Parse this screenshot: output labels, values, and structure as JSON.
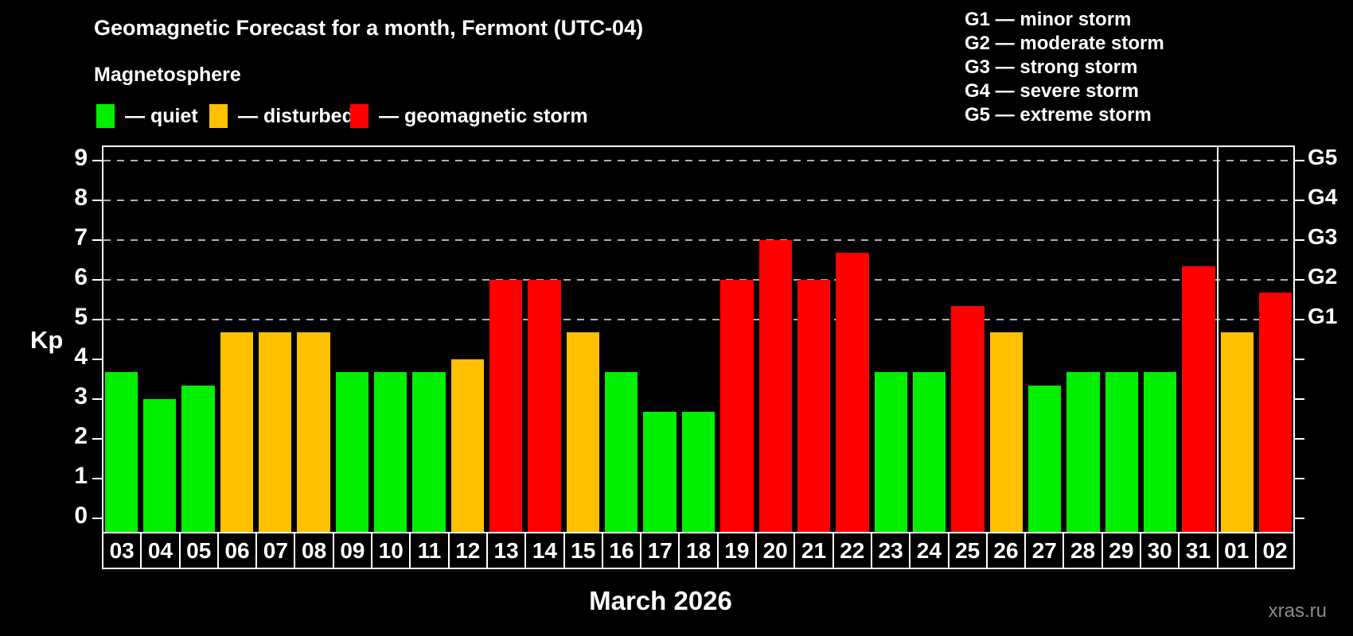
{
  "title": "Geomagnetic Forecast for a month, Fermont (UTC-04)",
  "subtitle": "Magnetosphere",
  "legend": {
    "quiet": "— quiet",
    "disturbed": "— disturbed",
    "storm": "— geomagnetic storm"
  },
  "g_legend": [
    "G1 — minor storm",
    "G2 — moderate storm",
    "G3 — strong storm",
    "G4 — severe storm",
    "G5 — extreme storm"
  ],
  "colors": {
    "quiet": "#00f000",
    "disturbed": "#ffc000",
    "storm": "#ff0000",
    "grid": "#b0b0b0",
    "axis": "#ffffff"
  },
  "watermark": "xras.ru",
  "chart_data": {
    "type": "bar",
    "title": "Geomagnetic Forecast for a month, Fermont (UTC-04)",
    "subtitle": "Magnetosphere",
    "xlabel": "March 2026",
    "ylabel": "Kp",
    "ylim": [
      -0.35,
      9.4
    ],
    "yticks": [
      "0",
      "1",
      "2",
      "3",
      "4",
      "5",
      "6",
      "7",
      "8",
      "9"
    ],
    "gridlines_at": [
      5,
      6,
      7,
      8,
      9
    ],
    "grid": "dashed, horizontal, at storm levels only",
    "legend_position": "top",
    "right_axis_ticks": [
      {
        "kp": 5,
        "label": "G1"
      },
      {
        "kp": 6,
        "label": "G2"
      },
      {
        "kp": 7,
        "label": "G3"
      },
      {
        "kp": 8,
        "label": "G4"
      },
      {
        "kp": 9,
        "label": "G5"
      }
    ],
    "month_separator_after_index": 28,
    "categories": [
      "03",
      "04",
      "05",
      "06",
      "07",
      "08",
      "09",
      "10",
      "11",
      "12",
      "13",
      "14",
      "15",
      "16",
      "17",
      "18",
      "19",
      "20",
      "21",
      "22",
      "23",
      "24",
      "25",
      "26",
      "27",
      "28",
      "29",
      "30",
      "31",
      "01",
      "02"
    ],
    "values": [
      3.67,
      3.0,
      3.33,
      4.67,
      4.67,
      4.67,
      3.67,
      3.67,
      3.67,
      4.0,
      6.0,
      6.0,
      4.67,
      3.67,
      2.67,
      2.67,
      6.0,
      7.0,
      6.0,
      6.67,
      3.67,
      3.67,
      5.33,
      4.67,
      3.33,
      3.67,
      3.67,
      3.67,
      6.33,
      4.67,
      5.67
    ],
    "status": [
      "quiet",
      "quiet",
      "quiet",
      "disturbed",
      "disturbed",
      "disturbed",
      "quiet",
      "quiet",
      "quiet",
      "disturbed",
      "storm",
      "storm",
      "disturbed",
      "quiet",
      "quiet",
      "quiet",
      "storm",
      "storm",
      "storm",
      "storm",
      "quiet",
      "quiet",
      "storm",
      "disturbed",
      "quiet",
      "quiet",
      "quiet",
      "quiet",
      "storm",
      "disturbed",
      "storm"
    ]
  }
}
